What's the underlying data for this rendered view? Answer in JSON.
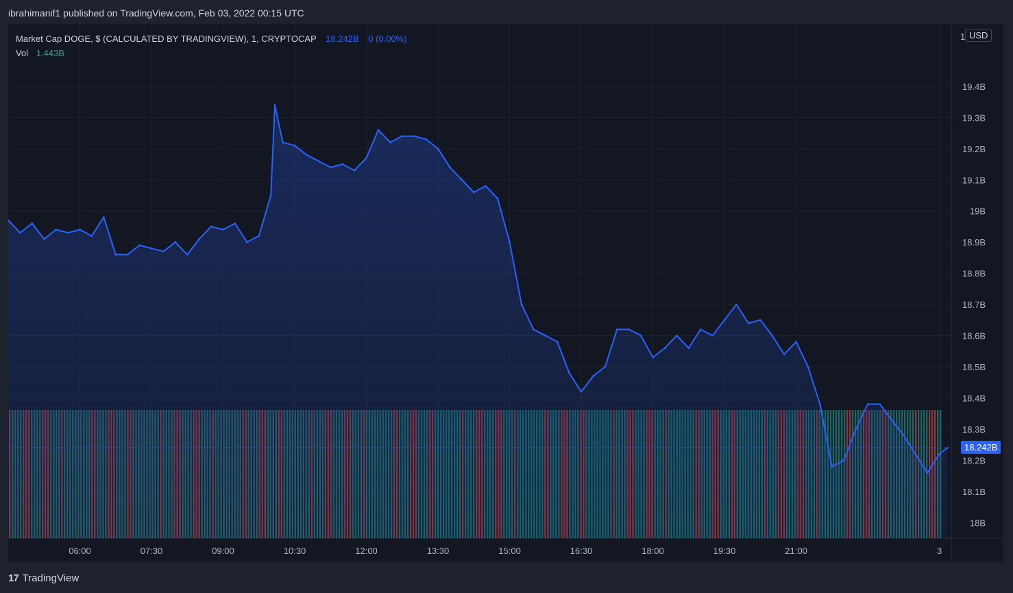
{
  "header": {
    "published": "ibrahimanif1 published on TradingView.com, Feb 03, 2022 00:15 UTC"
  },
  "legend": {
    "symbol": "Market Cap DOGE, $ (CALCULATED BY TRADINGVIEW), 1, CRYPTOCAP",
    "last": "18.242B",
    "change": "0 (0.00%)",
    "vol_label": "Vol",
    "vol_value": "1.443B"
  },
  "price_axis": {
    "currency": "USD",
    "top_label": "1",
    "last_price_label": "18.242B"
  },
  "footer": {
    "brand": "TradingView",
    "logo_glyph": "17"
  },
  "colors": {
    "background": "#131722",
    "line": "#2962ff",
    "area_top": "#1e3a8a",
    "volume_up": "#26a69a",
    "volume_down": "#ef5350",
    "grid": "#2a2e39"
  },
  "chart_data": {
    "type": "area",
    "ylim": [
      17.95,
      19.6
    ],
    "y_unit": "B",
    "y_ticks": [
      {
        "value": 19.4,
        "label": "19.4B"
      },
      {
        "value": 19.3,
        "label": "19.3B"
      },
      {
        "value": 19.2,
        "label": "19.2B"
      },
      {
        "value": 19.1,
        "label": "19.1B"
      },
      {
        "value": 19.0,
        "label": "19B"
      },
      {
        "value": 18.9,
        "label": "18.9B"
      },
      {
        "value": 18.8,
        "label": "18.8B"
      },
      {
        "value": 18.7,
        "label": "18.7B"
      },
      {
        "value": 18.6,
        "label": "18.6B"
      },
      {
        "value": 18.5,
        "label": "18.5B"
      },
      {
        "value": 18.4,
        "label": "18.4B"
      },
      {
        "value": 18.3,
        "label": "18.3B"
      },
      {
        "value": 18.2,
        "label": "18.2B"
      },
      {
        "value": 18.1,
        "label": "18.1B"
      },
      {
        "value": 18.0,
        "label": "18B"
      }
    ],
    "x_ticks": [
      {
        "t": "06:00",
        "label": "06:00"
      },
      {
        "t": "07:30",
        "label": "07:30"
      },
      {
        "t": "09:00",
        "label": "09:00"
      },
      {
        "t": "10:30",
        "label": "10:30"
      },
      {
        "t": "12:00",
        "label": "12:00"
      },
      {
        "t": "13:30",
        "label": "13:30"
      },
      {
        "t": "15:00",
        "label": "15:00"
      },
      {
        "t": "16:30",
        "label": "16:30"
      },
      {
        "t": "18:00",
        "label": "18:00"
      },
      {
        "t": "19:30",
        "label": "19:30"
      },
      {
        "t": "21:00",
        "label": "21:00"
      },
      {
        "t": "24:00",
        "label": "3"
      }
    ],
    "x_range": [
      "04:30",
      "24:15"
    ],
    "series": [
      {
        "x": [
          "04:30",
          "04:45",
          "05:00",
          "05:15",
          "05:30",
          "05:45",
          "06:00",
          "06:15",
          "06:30",
          "06:45",
          "07:00",
          "07:15",
          "07:30",
          "07:45",
          "08:00",
          "08:15",
          "08:30",
          "08:45",
          "09:00",
          "09:15",
          "09:30",
          "09:45",
          "10:00",
          "10:05",
          "10:15",
          "10:30",
          "10:45",
          "11:00",
          "11:15",
          "11:30",
          "11:45",
          "12:00",
          "12:15",
          "12:30",
          "12:45",
          "13:00",
          "13:15",
          "13:30",
          "13:45",
          "14:00",
          "14:15",
          "14:30",
          "14:45",
          "15:00",
          "15:15",
          "15:30",
          "15:45",
          "16:00",
          "16:15",
          "16:30",
          "16:45",
          "17:00",
          "17:15",
          "17:30",
          "17:45",
          "18:00",
          "18:15",
          "18:30",
          "18:45",
          "19:00",
          "19:15",
          "19:30",
          "19:45",
          "20:00",
          "20:15",
          "20:30",
          "20:45",
          "21:00",
          "21:15",
          "21:30",
          "21:45",
          "22:00",
          "22:15",
          "22:30",
          "22:45",
          "23:00",
          "23:15",
          "23:30",
          "23:45",
          "24:00",
          "24:10"
        ],
        "y": [
          18.97,
          18.93,
          18.96,
          18.91,
          18.94,
          18.93,
          18.94,
          18.92,
          18.98,
          18.86,
          18.86,
          18.89,
          18.88,
          18.87,
          18.9,
          18.86,
          18.91,
          18.95,
          18.94,
          18.96,
          18.9,
          18.92,
          19.05,
          19.34,
          19.22,
          19.21,
          19.18,
          19.16,
          19.14,
          19.15,
          19.13,
          19.17,
          19.26,
          19.22,
          19.24,
          19.24,
          19.23,
          19.2,
          19.14,
          19.1,
          19.06,
          19.08,
          19.04,
          18.9,
          18.7,
          18.62,
          18.6,
          18.58,
          18.48,
          18.42,
          18.47,
          18.5,
          18.62,
          18.62,
          18.6,
          18.53,
          18.56,
          18.6,
          18.56,
          18.62,
          18.6,
          18.65,
          18.7,
          18.64,
          18.65,
          18.6,
          18.54,
          18.58,
          18.5,
          18.38,
          18.18,
          18.2,
          18.3,
          18.38,
          18.38,
          18.33,
          18.28,
          18.22,
          18.16,
          18.22,
          18.24
        ]
      }
    ],
    "volume": {
      "label": "Vol",
      "last": "1.443B",
      "bar_colors": [
        "up",
        "down"
      ]
    }
  }
}
